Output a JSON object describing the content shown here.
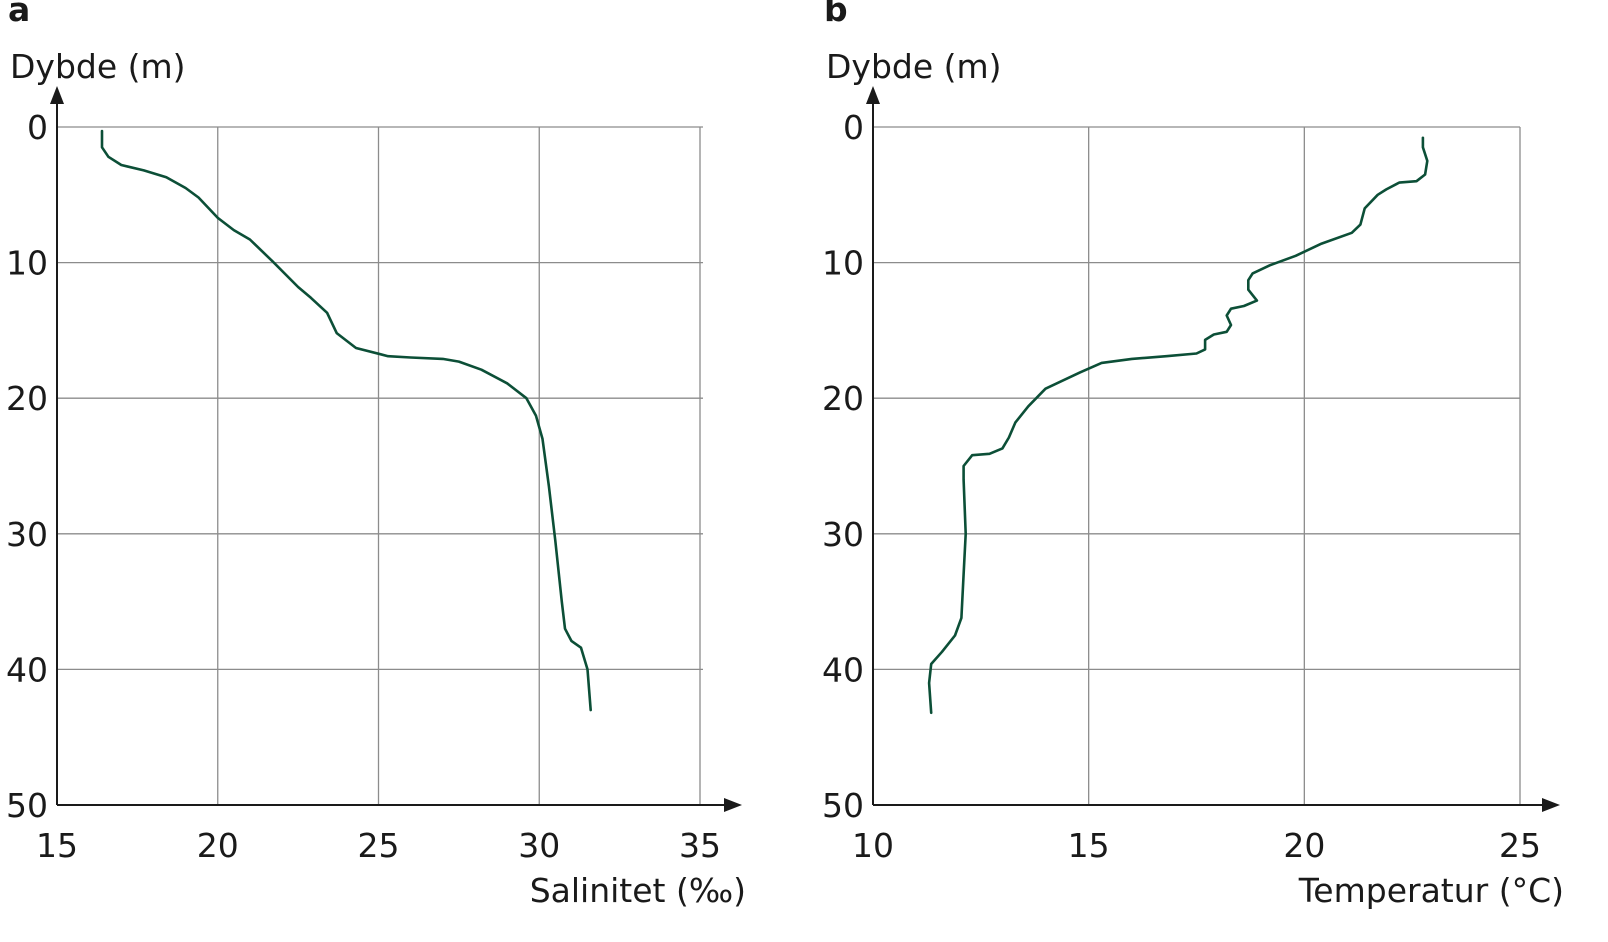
{
  "chart_data": [
    {
      "type": "line",
      "panel_label": "a",
      "ylabel": "Dybde (m)",
      "xlabel": "Salinitet (‰)",
      "xlim": [
        15,
        35
      ],
      "ylim": [
        0,
        50
      ],
      "y_inverted": true,
      "xticks": [
        "15",
        "20",
        "25",
        "30",
        "35"
      ],
      "yticks": [
        "0",
        "10",
        "20",
        "30",
        "40",
        "50"
      ],
      "grid": true,
      "line_color": "#0c4f37",
      "series": [
        {
          "points": [
            [
              16.4,
              0.3
            ],
            [
              16.4,
              1.5
            ],
            [
              16.6,
              2.2
            ],
            [
              17.0,
              2.8
            ],
            [
              17.7,
              3.2
            ],
            [
              18.4,
              3.7
            ],
            [
              19.0,
              4.5
            ],
            [
              19.4,
              5.2
            ],
            [
              20.0,
              6.7
            ],
            [
              20.5,
              7.6
            ],
            [
              21.0,
              8.3
            ],
            [
              21.7,
              9.9
            ],
            [
              22.5,
              11.8
            ],
            [
              22.9,
              12.6
            ],
            [
              23.4,
              13.7
            ],
            [
              23.7,
              15.2
            ],
            [
              24.3,
              16.3
            ],
            [
              25.3,
              16.9
            ],
            [
              26.0,
              17.0
            ],
            [
              27.0,
              17.1
            ],
            [
              27.5,
              17.3
            ],
            [
              28.2,
              17.9
            ],
            [
              29.0,
              18.9
            ],
            [
              29.6,
              20.0
            ],
            [
              29.9,
              21.3
            ],
            [
              30.1,
              23.0
            ],
            [
              30.3,
              26.5
            ],
            [
              30.5,
              30.5
            ],
            [
              30.7,
              35.0
            ],
            [
              30.8,
              37.0
            ],
            [
              31.0,
              37.9
            ],
            [
              31.3,
              38.4
            ],
            [
              31.5,
              40.0
            ],
            [
              31.6,
              43.0
            ]
          ]
        }
      ]
    },
    {
      "type": "line",
      "panel_label": "b",
      "ylabel": "Dybde (m)",
      "xlabel": "Temperatur (°C)",
      "xlim": [
        10,
        25
      ],
      "ylim": [
        0,
        50
      ],
      "y_inverted": true,
      "xticks": [
        "10",
        "15",
        "20",
        "25"
      ],
      "yticks": [
        "0",
        "10",
        "20",
        "30",
        "40",
        "50"
      ],
      "grid": true,
      "line_color": "#0c4f37",
      "series": [
        {
          "points": [
            [
              22.75,
              0.8
            ],
            [
              22.75,
              1.5
            ],
            [
              22.85,
              2.5
            ],
            [
              22.8,
              3.5
            ],
            [
              22.6,
              4.0
            ],
            [
              22.2,
              4.1
            ],
            [
              21.9,
              4.6
            ],
            [
              21.7,
              5.0
            ],
            [
              21.4,
              6.0
            ],
            [
              21.3,
              7.2
            ],
            [
              21.1,
              7.8
            ],
            [
              20.4,
              8.6
            ],
            [
              19.8,
              9.5
            ],
            [
              19.2,
              10.2
            ],
            [
              18.8,
              10.8
            ],
            [
              18.7,
              11.3
            ],
            [
              18.7,
              12.0
            ],
            [
              18.9,
              12.8
            ],
            [
              18.6,
              13.2
            ],
            [
              18.3,
              13.4
            ],
            [
              18.2,
              13.9
            ],
            [
              18.3,
              14.6
            ],
            [
              18.2,
              15.1
            ],
            [
              17.9,
              15.3
            ],
            [
              17.7,
              15.7
            ],
            [
              17.7,
              16.4
            ],
            [
              17.5,
              16.7
            ],
            [
              16.8,
              16.9
            ],
            [
              16.0,
              17.1
            ],
            [
              15.3,
              17.4
            ],
            [
              14.8,
              18.1
            ],
            [
              14.0,
              19.3
            ],
            [
              13.6,
              20.6
            ],
            [
              13.3,
              21.8
            ],
            [
              13.15,
              22.9
            ],
            [
              13.0,
              23.7
            ],
            [
              12.7,
              24.1
            ],
            [
              12.3,
              24.2
            ],
            [
              12.1,
              25.0
            ],
            [
              12.1,
              26.0
            ],
            [
              12.15,
              30.0
            ],
            [
              12.1,
              33.0
            ],
            [
              12.05,
              36.2
            ],
            [
              11.9,
              37.5
            ],
            [
              11.6,
              38.7
            ],
            [
              11.35,
              39.6
            ],
            [
              11.3,
              41.0
            ],
            [
              11.35,
              43.2
            ]
          ]
        }
      ]
    }
  ]
}
